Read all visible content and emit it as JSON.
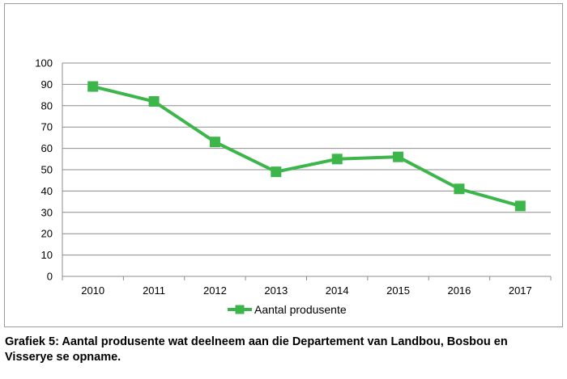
{
  "chart_data": {
    "type": "line",
    "categories": [
      "2010",
      "2011",
      "2012",
      "2013",
      "2014",
      "2015",
      "2016",
      "2017"
    ],
    "series": [
      {
        "name": "Aantal produsente",
        "values": [
          89,
          82,
          63,
          49,
          55,
          56,
          41,
          33
        ],
        "color": "#3cb64a"
      }
    ],
    "ylim": [
      0,
      100
    ],
    "yticks": [
      0,
      10,
      20,
      30,
      40,
      50,
      60,
      70,
      80,
      90,
      100
    ],
    "grid": true,
    "legend": "bottom",
    "marker": "square"
  },
  "caption": {
    "line1": "Grafiek 5: Aantal produsente wat deelneem aan die Departement van Landbou, Bosbou en",
    "line2": "Visserye se opname."
  }
}
